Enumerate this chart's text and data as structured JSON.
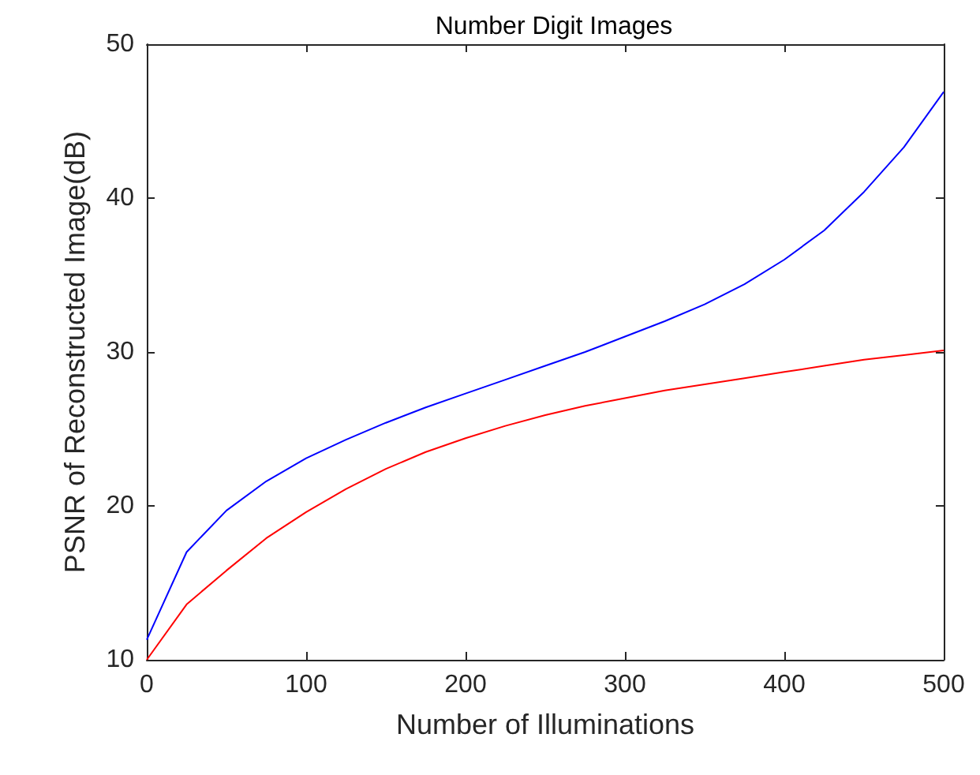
{
  "chart_data": {
    "type": "line",
    "title": "Number Digit Images",
    "xlabel": "Number of Illuminations",
    "ylabel": "PSNR of Reconstructed Image(dB)",
    "x": [
      0,
      25,
      50,
      75,
      100,
      125,
      150,
      175,
      200,
      225,
      250,
      275,
      300,
      325,
      350,
      375,
      400,
      425,
      450,
      475,
      500
    ],
    "series": [
      {
        "color": "#0000ff",
        "values": [
          11.3,
          17.0,
          19.7,
          21.6,
          23.1,
          24.3,
          25.4,
          26.4,
          27.3,
          28.2,
          29.1,
          30.0,
          31.0,
          32.0,
          33.1,
          34.4,
          36.0,
          37.9,
          40.4,
          43.3,
          46.9
        ]
      },
      {
        "color": "#ff0000",
        "values": [
          10.0,
          13.6,
          15.8,
          17.9,
          19.6,
          21.1,
          22.4,
          23.5,
          24.4,
          25.2,
          25.9,
          26.5,
          27.0,
          27.5,
          27.9,
          28.3,
          28.7,
          29.1,
          29.5,
          29.8,
          30.1
        ]
      }
    ],
    "xlim": [
      0,
      500
    ],
    "xticks": [
      0,
      100,
      200,
      300,
      400,
      500
    ],
    "ylim": [
      10,
      50
    ],
    "yticks": [
      10,
      20,
      30,
      40,
      50
    ],
    "grid": false,
    "marker": "none",
    "line_style": "solid"
  }
}
